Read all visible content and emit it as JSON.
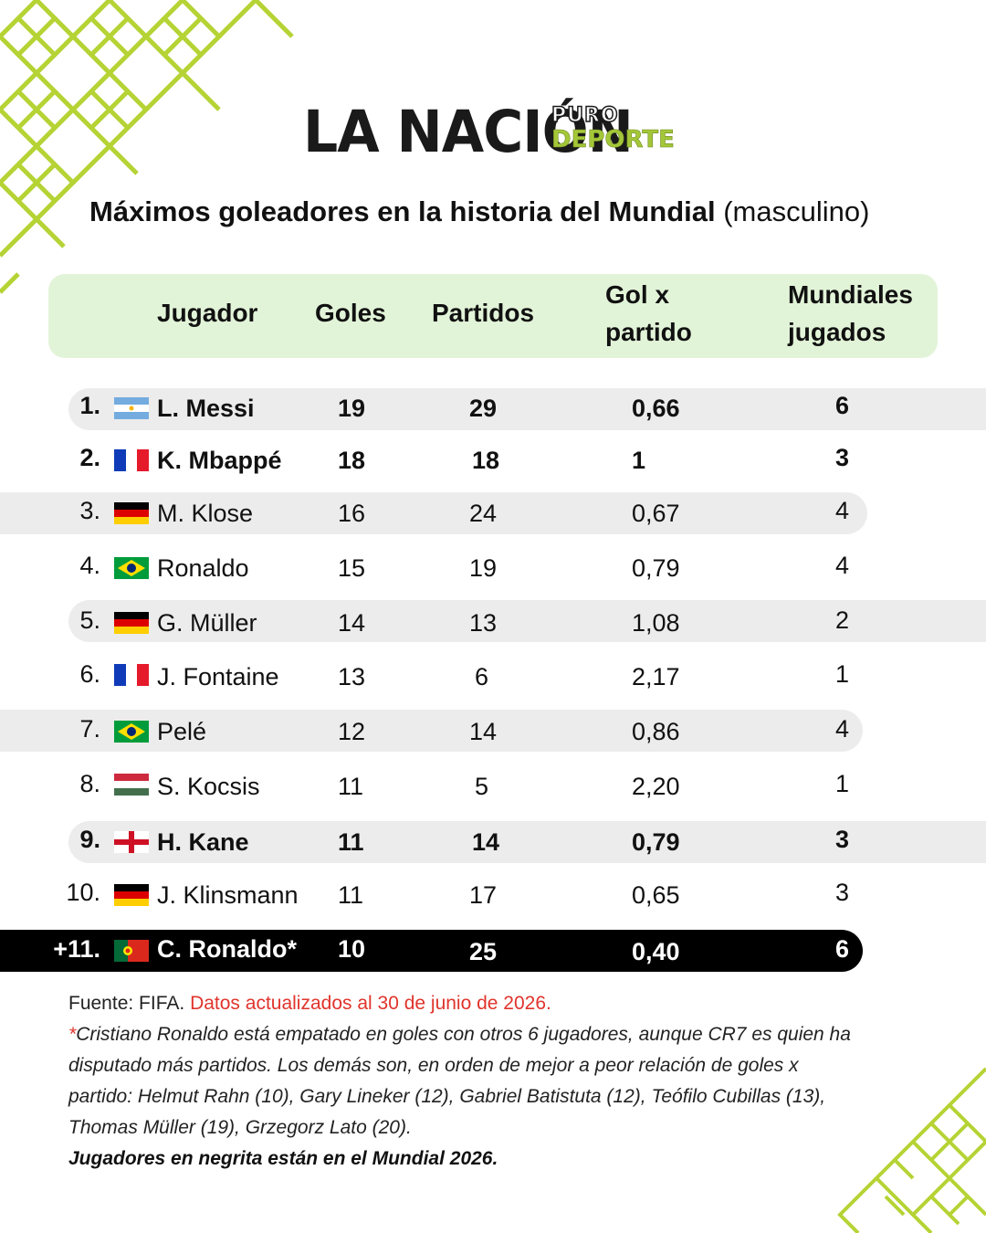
{
  "brand": {
    "main": "LA NACIÓN",
    "sub_top": "PURO",
    "sub_bottom": "DEPORTE",
    "accent": "#a4c739"
  },
  "title": {
    "bold": "Máximos goleadores en la historia del Mundial",
    "normal": "(masculino)"
  },
  "table": {
    "headers": {
      "player": "Jugador",
      "goals": "Goles",
      "matches": "Partidos",
      "ratio_line1": "Gol x",
      "ratio_line2": "partido",
      "cups_line1": "Mundiales",
      "cups_line2": "jugados"
    },
    "rows": [
      {
        "rank": "1.",
        "flag": "argentina-flag-icon",
        "player": "L. Messi",
        "goals": "19",
        "matches": "29",
        "ratio": "0,66",
        "cups": "6"
      },
      {
        "rank": "2.",
        "flag": "france-flag-icon",
        "player": "K. Mbappé",
        "goals": "18",
        "matches": "18",
        "ratio": "1",
        "cups": "3"
      },
      {
        "rank": "3.",
        "flag": "germany-flag-icon",
        "player": "M. Klose",
        "goals": "16",
        "matches": "24",
        "ratio": "0,67",
        "cups": "4"
      },
      {
        "rank": "4.",
        "flag": "brazil-flag-icon",
        "player": "Ronaldo",
        "goals": "15",
        "matches": "19",
        "ratio": "0,79",
        "cups": "4"
      },
      {
        "rank": "5.",
        "flag": "germany-flag-icon",
        "player": "G. Müller",
        "goals": "14",
        "matches": "13",
        "ratio": "1,08",
        "cups": "2"
      },
      {
        "rank": "6.",
        "flag": "france-flag-icon",
        "player": "J. Fontaine",
        "goals": "13",
        "matches": "6",
        "ratio": "2,17",
        "cups": "1"
      },
      {
        "rank": "7.",
        "flag": "brazil-flag-icon",
        "player": "Pelé",
        "goals": "12",
        "matches": "14",
        "ratio": "0,86",
        "cups": "4"
      },
      {
        "rank": "8.",
        "flag": "hungary-flag-icon",
        "player": "S. Kocsis",
        "goals": "11",
        "matches": "5",
        "ratio": "2,20",
        "cups": "1"
      },
      {
        "rank": "9.",
        "flag": "england-flag-icon",
        "player": "H. Kane",
        "goals": "11",
        "matches": "14",
        "ratio": "0,79",
        "cups": "3"
      },
      {
        "rank": "10.",
        "flag": "germany-flag-icon",
        "player": "J. Klinsmann",
        "goals": "11",
        "matches": "17",
        "ratio": "0,65",
        "cups": "3"
      },
      {
        "rank": "+11.",
        "flag": "portugal-flag-icon",
        "player": "C. Ronaldo*",
        "goals": "10",
        "matches": "25",
        "ratio": "0,40",
        "cups": "6"
      }
    ]
  },
  "footer": {
    "source": "Fuente: FIFA.",
    "updated": "Datos actualizados al 30 de junio de 2026.",
    "asterisk": "*",
    "note_line1": "Cristiano Ronaldo está empatado en goles con otros 6 jugadores, aunque CR7 es quien ha",
    "note_line2": "disputado más partidos. Los demás son, en orden de mejor a peor relación de goles x",
    "note_line3": "partido: Helmut Rahn (10), Gary Lineker (12), Gabriel Batistuta (12), Teófilo Cubillas (13),",
    "note_line4": "Thomas Müller (19), Grzegorz Lato (20).",
    "bold_note": "Jugadores en negrita están en el Mundial 2026."
  }
}
